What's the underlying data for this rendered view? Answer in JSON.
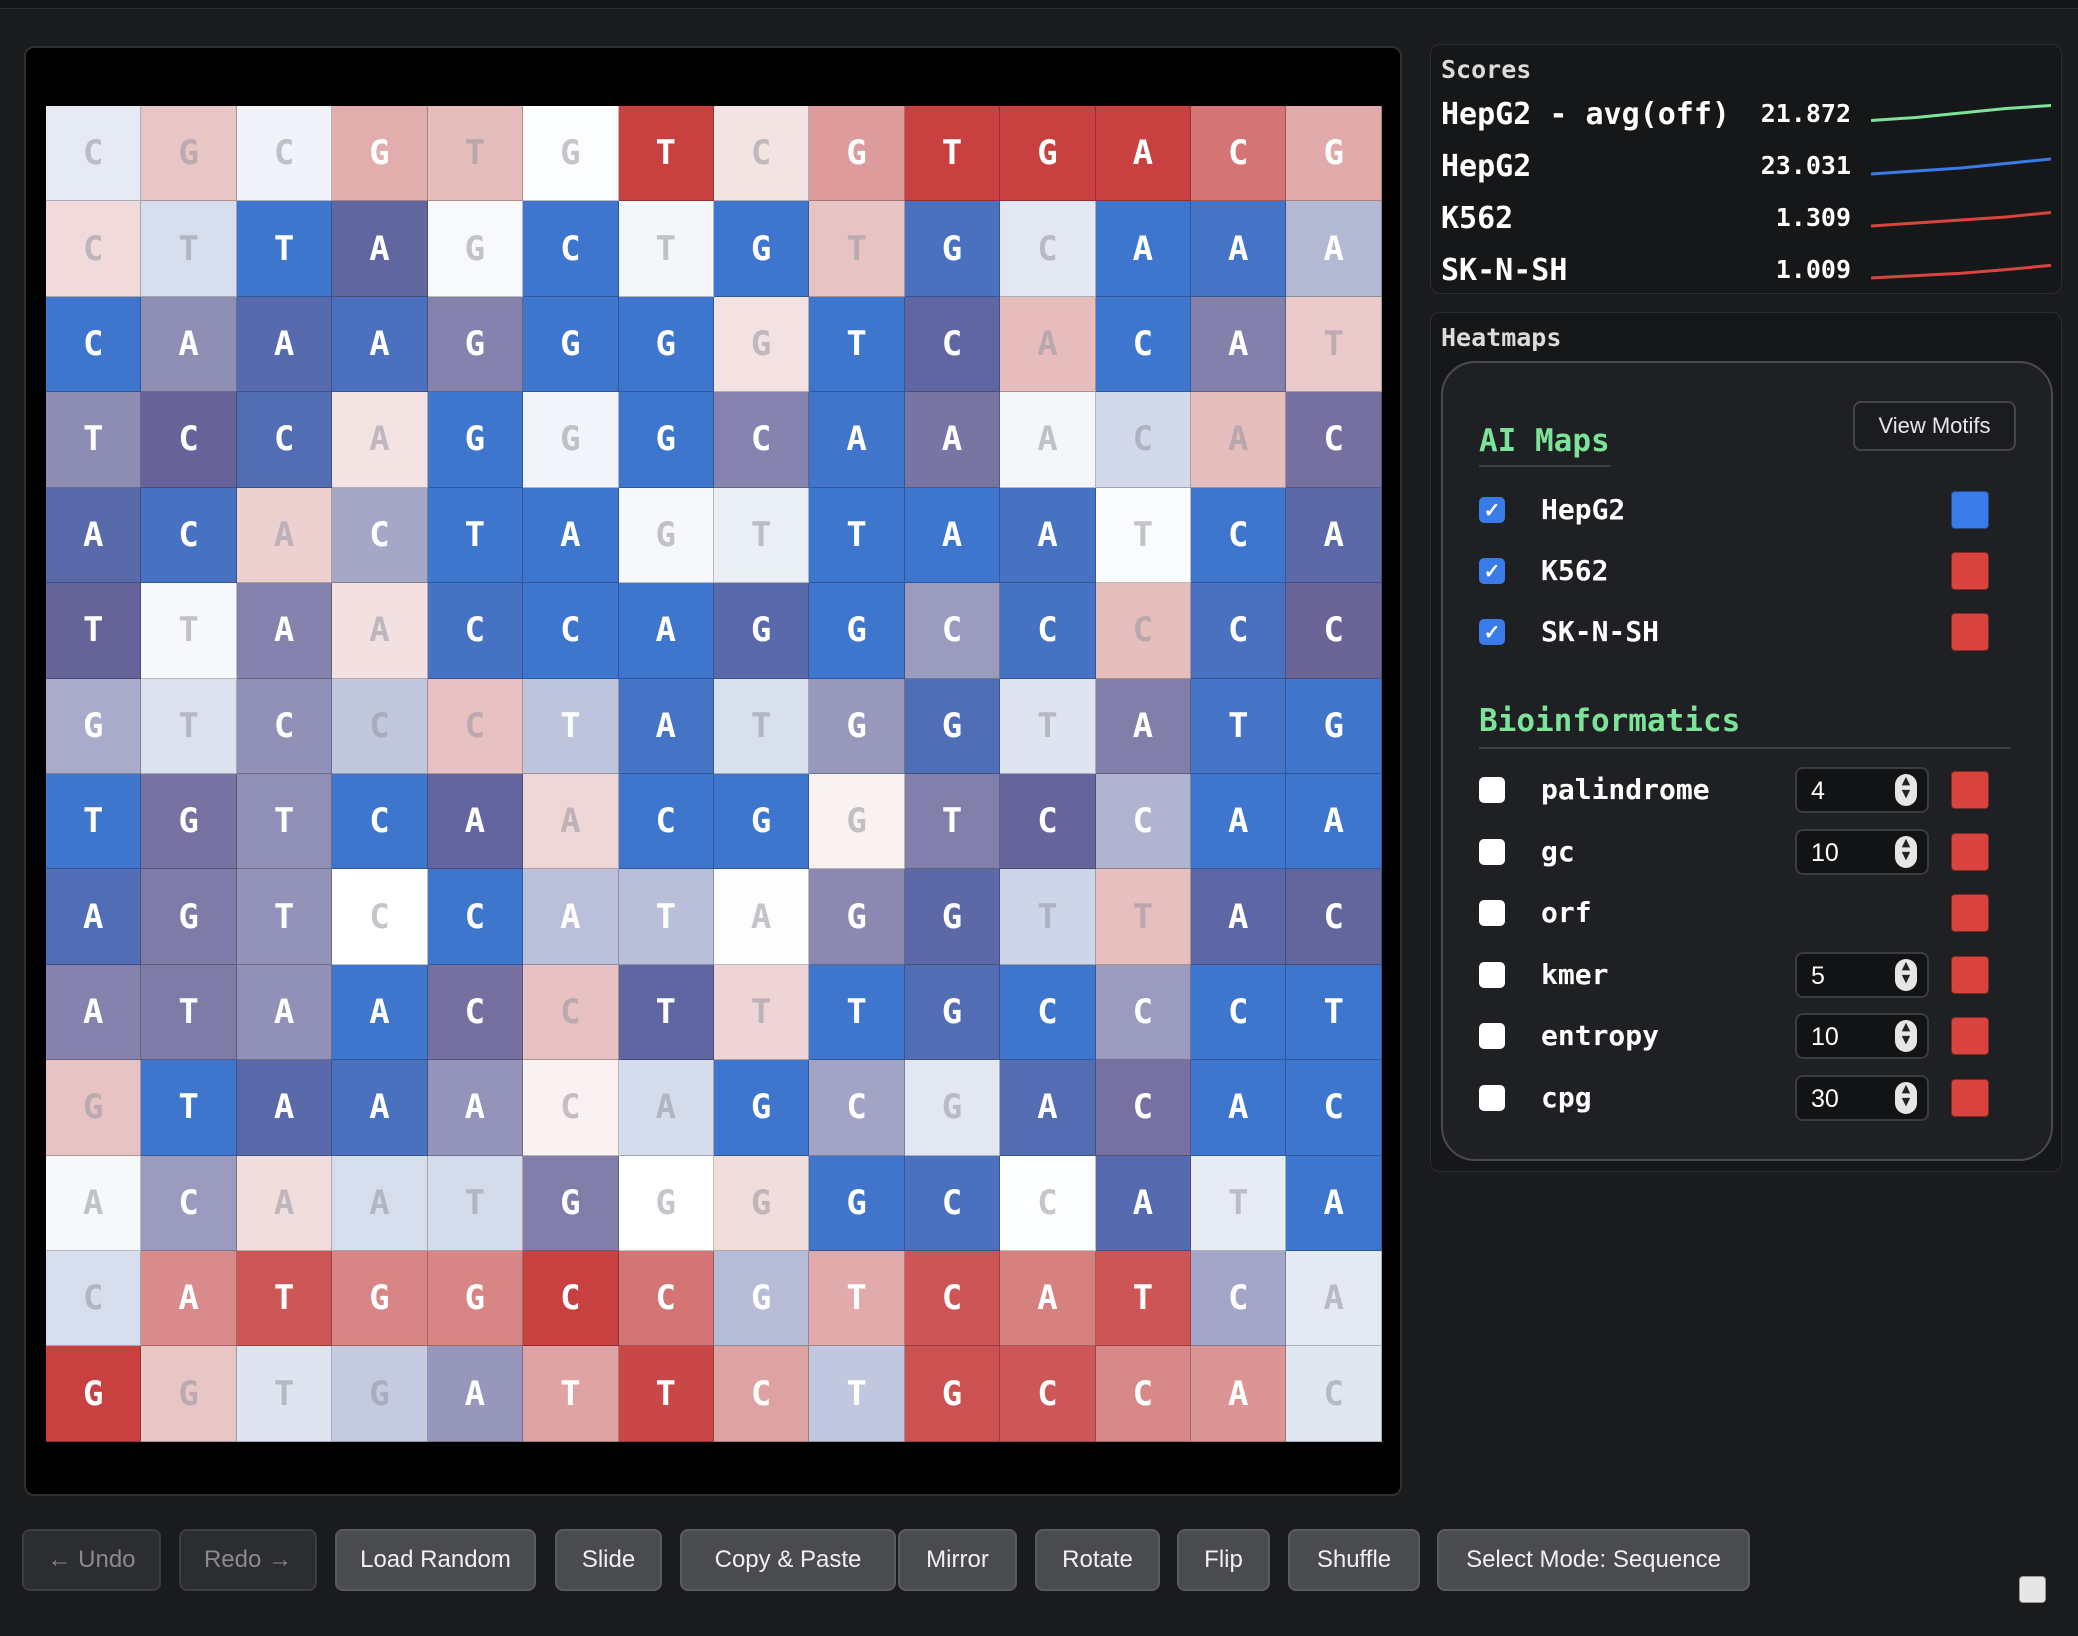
{
  "grid": {
    "rows": [
      "CGCGTGTCGTGACG",
      "CTTAGCTGTGCAAA",
      "CAAAGGGGTCACAT",
      "TCCAGGGCAAACAC",
      "ACACTAGTTAATCA",
      "TTAACCAGGCCCCC",
      "GTCCCTATGGTATG",
      "TGTCAACGGTCCAA",
      "AGTCCATAGGTTAC",
      "ATAACCTTTGCCCT",
      "GTAAACAGCGACAC",
      "ACAATGGGGCCATA",
      "CATGGCCGTCATCA",
      "GGTGATTCTGCCAC"
    ]
  },
  "scores": {
    "title": "Scores",
    "items": [
      {
        "name": "HepG2 - avg(off)",
        "value": "21.872",
        "color": "#7ee39a",
        "trend": [
          0.35,
          0.45,
          0.6,
          0.75,
          0.85
        ]
      },
      {
        "name": "HepG2",
        "value": "23.031",
        "color": "#3a7bea",
        "trend": [
          0.3,
          0.4,
          0.5,
          0.65,
          0.8
        ]
      },
      {
        "name": "K562",
        "value": "1.309",
        "color": "#d9443f",
        "trend": [
          0.3,
          0.4,
          0.5,
          0.6,
          0.75
        ]
      },
      {
        "name": "SK-N-SH",
        "value": "1.009",
        "color": "#d9443f",
        "trend": [
          0.3,
          0.38,
          0.46,
          0.58,
          0.72
        ]
      }
    ]
  },
  "heatmaps": {
    "title": "Heatmaps",
    "view_motifs_label": "View Motifs",
    "ai_maps": {
      "title": "AI Maps",
      "items": [
        {
          "label": "HepG2",
          "checked": true,
          "color": "#3a7bea"
        },
        {
          "label": "K562",
          "checked": true,
          "color": "#d9443f"
        },
        {
          "label": "SK-N-SH",
          "checked": true,
          "color": "#d9443f"
        }
      ]
    },
    "bioinformatics": {
      "title": "Bioinformatics",
      "items": [
        {
          "label": "palindrome",
          "checked": false,
          "value": "4",
          "color": "#d9443f"
        },
        {
          "label": "gc",
          "checked": false,
          "value": "10",
          "color": "#d9443f"
        },
        {
          "label": "orf",
          "checked": false,
          "value": null,
          "color": "#d9443f"
        },
        {
          "label": "kmer",
          "checked": false,
          "value": "5",
          "color": "#d9443f"
        },
        {
          "label": "entropy",
          "checked": false,
          "value": "10",
          "color": "#d9443f"
        },
        {
          "label": "cpg",
          "checked": false,
          "value": "30",
          "color": "#d9443f"
        }
      ]
    }
  },
  "toolbar": {
    "undo_label": "← Undo",
    "redo_label": "Redo →",
    "load_random_label": "Load Random",
    "slide_label": "Slide",
    "copy_paste_label": "Copy & Paste",
    "mirror_label": "Mirror",
    "rotate_label": "Rotate",
    "flip_label": "Flip",
    "shuffle_label": "Shuffle",
    "select_mode_label": "Select Mode: Sequence"
  },
  "colors": {
    "blue": "#3a7bea",
    "red": "#d9443f",
    "green": "#7ee39a"
  }
}
